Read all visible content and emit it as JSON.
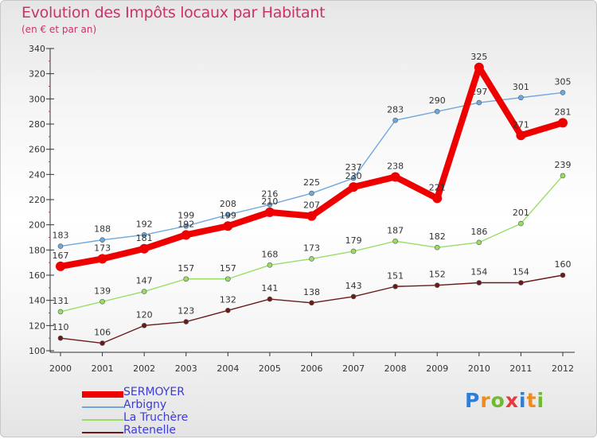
{
  "chart_data": {
    "type": "line",
    "title": "Evolution des Impôts locaux par Habitant",
    "subtitle": "(en € et par an)",
    "xlabel": "",
    "ylabel": "",
    "ylim": [
      100,
      340
    ],
    "yticks": [
      100,
      120,
      140,
      160,
      180,
      200,
      220,
      240,
      260,
      280,
      300,
      320,
      340
    ],
    "categories": [
      "2000",
      "2001",
      "2002",
      "2003",
      "2004",
      "2005",
      "2006",
      "2007",
      "2008",
      "2009",
      "2010",
      "2011",
      "2012"
    ],
    "series": [
      {
        "name": "Ratenelle",
        "color": "#6b1a1a",
        "values": [
          110,
          106,
          120,
          123,
          132,
          141,
          138,
          143,
          151,
          152,
          154,
          154,
          160
        ]
      },
      {
        "name": "La Truchère",
        "color": "#99dd66",
        "values": [
          131,
          139,
          147,
          157,
          157,
          168,
          173,
          179,
          187,
          182,
          186,
          201,
          239
        ]
      },
      {
        "name": "Arbigny",
        "color": "#6fa8dc",
        "values": [
          183,
          188,
          192,
          199,
          208,
          216,
          225,
          237,
          283,
          290,
          297,
          301,
          305
        ]
      },
      {
        "name": "SERMOYER",
        "color": "#ee0000",
        "values": [
          167,
          173,
          181,
          192,
          199,
          210,
          207,
          230,
          238,
          221,
          325,
          271,
          281
        ]
      }
    ],
    "legend": [
      "SERMOYER",
      "Arbigny",
      "La Truchère",
      "Ratenelle"
    ],
    "legend_position": "bottom-left",
    "grid": false
  },
  "logo": {
    "letters": [
      "P",
      "r",
      "o",
      "x",
      "i",
      "t",
      "i"
    ],
    "colors": [
      "#2f7dd6",
      "#f08a1c",
      "#6dbb2f",
      "#e83a3a",
      "#2f7dd6",
      "#f08a1c",
      "#6dbb2f"
    ]
  }
}
